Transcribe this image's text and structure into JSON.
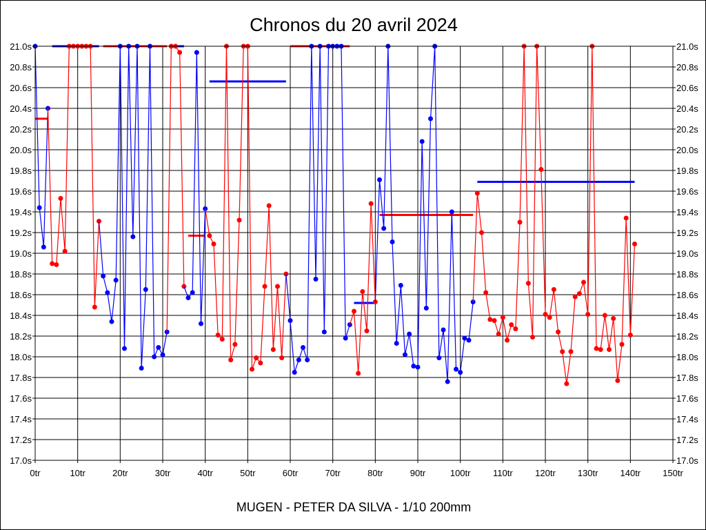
{
  "chart_data": {
    "type": "line",
    "title": "Chronos du 20 avril 2024",
    "subtitle": "MUGEN - PETER DA SILVA - 1/10 200mm",
    "xlabel": "",
    "ylabel": "",
    "xlim": [
      0,
      150
    ],
    "ylim": [
      17.0,
      21.0
    ],
    "x_ticks": [
      "0tr",
      "10tr",
      "20tr",
      "30tr",
      "40tr",
      "50tr",
      "60tr",
      "70tr",
      "80tr",
      "90tr",
      "100tr",
      "110tr",
      "120tr",
      "130tr",
      "140tr",
      "150tr"
    ],
    "y_ticks": [
      "21.0s",
      "20.8s",
      "20.6s",
      "20.4s",
      "20.2s",
      "20.0s",
      "19.8s",
      "19.6s",
      "19.4s",
      "19.2s",
      "19.0s",
      "18.8s",
      "18.6s",
      "18.4s",
      "18.2s",
      "18.0s",
      "17.8s",
      "17.6s",
      "17.4s",
      "17.2s",
      "17.0s"
    ],
    "grid": true,
    "colors": {
      "blue": "#0000ff",
      "red": "#ff0000"
    },
    "stints": [
      {
        "color": "blue",
        "start_lap": 0,
        "average": 20.3,
        "times": [
          21.0,
          19.44,
          19.06,
          20.4
        ]
      },
      {
        "color": "red",
        "start_lap": 4,
        "average": 21.0,
        "times": [
          18.9,
          18.89,
          19.53,
          19.02,
          21.0,
          21.0,
          21.0,
          21.0,
          21.0,
          21.0,
          18.48,
          19.31
        ]
      },
      {
        "color": "blue",
        "start_lap": 16,
        "average": 21.0,
        "times": [
          18.78,
          18.62,
          18.34,
          18.74,
          21.0,
          18.08,
          21.0,
          19.16,
          21.0,
          17.89,
          18.65,
          21.0,
          18.0,
          18.09,
          18.02,
          18.24
        ]
      },
      {
        "color": "red",
        "start_lap": 32,
        "average": 21.0,
        "times": [
          21.0,
          21.0,
          20.94,
          18.68
        ]
      },
      {
        "color": "blue",
        "start_lap": 36,
        "average": 19.17,
        "times": [
          18.57,
          18.62,
          20.94,
          18.32,
          19.43
        ]
      },
      {
        "color": "red",
        "start_lap": 41,
        "average": 20.66,
        "times": [
          19.17,
          19.09,
          18.21,
          18.17,
          21.0,
          17.97,
          18.12,
          19.32,
          21.0,
          21.0,
          17.88,
          17.99,
          17.94,
          18.68,
          19.46,
          18.07,
          18.68,
          17.99,
          18.8
        ]
      },
      {
        "color": "blue",
        "start_lap": 60,
        "average": 21.0,
        "times": [
          18.35,
          17.85,
          17.97,
          18.09,
          17.97,
          21.0,
          18.75,
          21.0,
          18.24,
          21.0,
          21.0,
          21.0,
          21.0,
          18.18,
          18.31
        ]
      },
      {
        "color": "red",
        "start_lap": 75,
        "average": 18.52,
        "times": [
          18.44,
          17.84,
          18.63,
          18.25,
          19.48,
          18.53
        ]
      },
      {
        "color": "blue",
        "start_lap": 81,
        "average": 19.37,
        "times": [
          19.71,
          19.24,
          21.0,
          19.11,
          18.13,
          18.69,
          18.02,
          18.22,
          17.91,
          17.9,
          20.08,
          18.47,
          20.3,
          21.0,
          17.99,
          18.26,
          17.76,
          19.4,
          17.88,
          17.85,
          18.18,
          18.16,
          18.53
        ]
      },
      {
        "color": "red",
        "start_lap": 104,
        "average": 19.69,
        "times": [
          19.58,
          19.2,
          18.62,
          18.36,
          18.35,
          18.22,
          18.38,
          18.16,
          18.31,
          18.27,
          19.3,
          21.0,
          18.71,
          18.19,
          21.0,
          19.81,
          18.41,
          18.38,
          18.65,
          18.24,
          18.05,
          17.74,
          18.05,
          18.58,
          18.61,
          18.72,
          18.41,
          21.0,
          18.08,
          18.07,
          18.4,
          18.07,
          18.37,
          17.77,
          18.12,
          19.34,
          18.21,
          19.09
        ]
      }
    ]
  }
}
